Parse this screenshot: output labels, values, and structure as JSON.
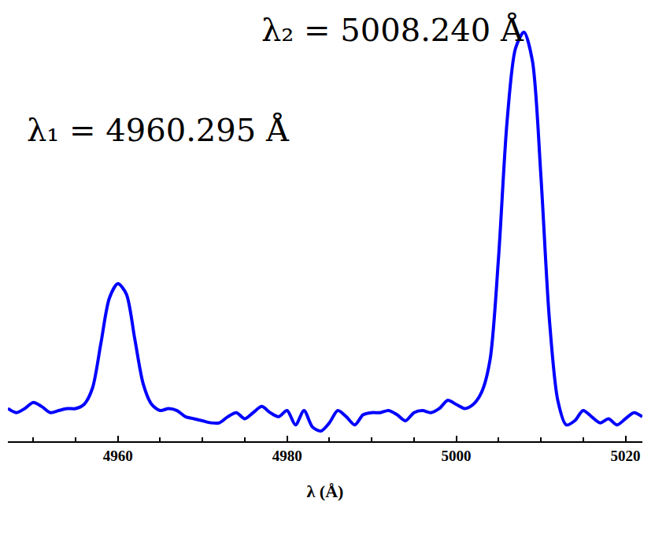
{
  "chart_data": {
    "type": "line",
    "x_label": "λ (Å)",
    "annotations": [
      "λ₂ = 5008.240 Å",
      "λ₁ = 4960.295 Å"
    ],
    "x": [
      4947,
      4948,
      4949,
      4950,
      4951,
      4952,
      4953,
      4954,
      4955,
      4956,
      4957,
      4958,
      4959,
      4960,
      4961,
      4962,
      4963,
      4964,
      4965,
      4966,
      4967,
      4968,
      4969,
      4970,
      4971,
      4972,
      4973,
      4974,
      4975,
      4976,
      4977,
      4978,
      4979,
      4980,
      4981,
      4982,
      4983,
      4984,
      4985,
      4986,
      4987,
      4988,
      4989,
      4990,
      4991,
      4992,
      4993,
      4994,
      4995,
      4996,
      4997,
      4998,
      4999,
      5000,
      5001,
      5002,
      5003,
      5004,
      5005,
      5006,
      5007,
      5008,
      5009,
      5010,
      5011,
      5012,
      5013,
      5014,
      5015,
      5016,
      5017,
      5018,
      5019,
      5020,
      5021,
      5022
    ],
    "values": [
      0.08,
      0.07,
      0.08,
      0.095,
      0.085,
      0.07,
      0.075,
      0.08,
      0.08,
      0.09,
      0.13,
      0.24,
      0.35,
      0.385,
      0.36,
      0.25,
      0.14,
      0.09,
      0.075,
      0.08,
      0.075,
      0.06,
      0.055,
      0.05,
      0.045,
      0.045,
      0.06,
      0.07,
      0.055,
      0.07,
      0.085,
      0.07,
      0.06,
      0.075,
      0.04,
      0.075,
      0.035,
      0.025,
      0.045,
      0.075,
      0.06,
      0.04,
      0.065,
      0.07,
      0.07,
      0.075,
      0.065,
      0.05,
      0.07,
      0.075,
      0.07,
      0.08,
      0.1,
      0.09,
      0.08,
      0.09,
      0.12,
      0.2,
      0.45,
      0.78,
      0.96,
      1.0,
      0.93,
      0.65,
      0.3,
      0.1,
      0.04,
      0.05,
      0.075,
      0.06,
      0.045,
      0.055,
      0.04,
      0.055,
      0.07,
      0.06
    ],
    "color": "#0000ff",
    "xlim": [
      4947,
      5022
    ],
    "xticks": [
      4960,
      4980,
      5000,
      5020
    ],
    "ylim": [
      0,
      1.04
    ],
    "tick_labels": "x",
    "grid": false
  }
}
